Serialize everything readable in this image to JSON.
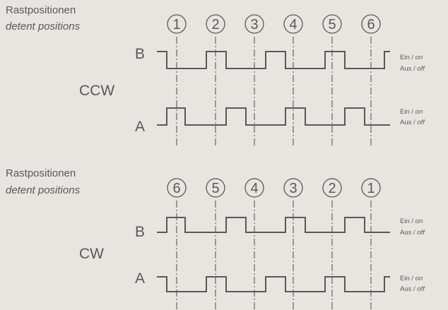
{
  "panels": [
    {
      "id": "ccw",
      "section_title": "Rastpositionen",
      "section_subtitle": "detent positions",
      "direction_label": "CCW",
      "positions": [
        "1",
        "2",
        "3",
        "4",
        "5",
        "6"
      ],
      "channels": [
        {
          "name": "B",
          "signal": [
            1,
            0,
            0,
            1,
            0,
            0,
            1,
            0,
            0,
            1,
            0,
            0,
            1
          ],
          "on_label": "Ein /",
          "on_label_en": "on",
          "off_label": "Aus /",
          "off_label_en": "off"
        },
        {
          "name": "A",
          "signal": [
            0,
            1,
            0,
            0,
            1,
            0,
            0,
            1,
            0,
            0,
            1,
            0,
            0
          ],
          "on_label": "Ein /",
          "on_label_en": "on",
          "off_label": "Aus /",
          "off_label_en": "off"
        }
      ]
    },
    {
      "id": "cw",
      "section_title": "Rastpositionen",
      "section_subtitle": "detent positions",
      "direction_label": "CW",
      "positions": [
        "6",
        "5",
        "4",
        "3",
        "2",
        "1"
      ],
      "channels": [
        {
          "name": "B",
          "signal": [
            0,
            1,
            0,
            0,
            1,
            0,
            0,
            1,
            0,
            0,
            1,
            0,
            0
          ],
          "on_label": "Ein /",
          "on_label_en": "on",
          "off_label": "Aus /",
          "off_label_en": "off"
        },
        {
          "name": "A",
          "signal": [
            1,
            0,
            0,
            1,
            0,
            0,
            1,
            0,
            0,
            1,
            0,
            0,
            1
          ],
          "on_label": "Ein /",
          "on_label_en": "on",
          "off_label": "Aus /",
          "off_label_en": "off"
        }
      ]
    }
  ],
  "colors": {
    "background": "#e8e5e1",
    "ink": "#5a5757"
  }
}
